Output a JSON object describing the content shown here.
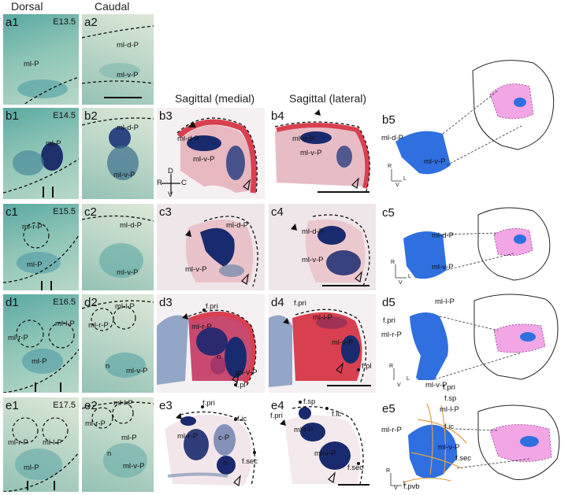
{
  "headers": {
    "dorsal": "Dorsal",
    "caudal": "Caudal",
    "sag_medial": "Sagittal (medial)",
    "sag_lateral": "Sagittal (lateral)"
  },
  "row_a": {
    "a1": {
      "label": "a1",
      "stage": "E13.5",
      "mlP": "ml-P"
    },
    "a2": {
      "label": "a2",
      "mldP": "ml-d-P",
      "mlvP": "ml-v-P"
    }
  },
  "row_b": {
    "b1": {
      "label": "b1",
      "stage": "E14.5",
      "mlP": "ml-P"
    },
    "b2": {
      "label": "b2",
      "mldP": "ml-d-P",
      "mlvP": "ml-v-P"
    },
    "b3": {
      "label": "b3",
      "mldP": "ml-d-P",
      "mlvP": "ml-v-P",
      "D": "D",
      "R": "R",
      "C": "C",
      "V": "V"
    },
    "b4": {
      "label": "b4",
      "mldP": "ml-d-P",
      "mlvP": "ml-v-P"
    },
    "b5": {
      "label": "b5",
      "mldP": "ml-d-P",
      "mlvP": "ml-v-P",
      "R": "R",
      "L": "L",
      "V": "V"
    }
  },
  "row_c": {
    "c1": {
      "label": "c1",
      "stage": "E15.5",
      "mlrP": "ml-r-P",
      "mlP": "ml-P"
    },
    "c2": {
      "label": "c2",
      "mldP": "ml-d-P",
      "mlvP": "ml-v-P"
    },
    "c3": {
      "label": "c3",
      "mldP": "ml-d-P",
      "mlvP": "ml-v-P"
    },
    "c4": {
      "label": "c4",
      "mldP": "ml-d-P",
      "mlvP": "ml-v-P"
    },
    "c5": {
      "label": "c5",
      "mldP": "ml-d-P",
      "mlvP": "ml-v-P",
      "R": "R",
      "L": "L",
      "V": "V"
    }
  },
  "row_d": {
    "d1": {
      "label": "d1",
      "stage": "E16.5",
      "mllP": "ml-l-P",
      "mlrP": "ml-r-P",
      "mlP": "ml-P"
    },
    "d2": {
      "label": "d2",
      "mllP": "ml-l-P",
      "mlrP": "ml-r-P",
      "n": "n",
      "mlvP": "ml-v-P"
    },
    "d3": {
      "label": "d3",
      "fpri": "f.pri",
      "mlrP": "ml-r-P",
      "n": "n",
      "mlvP": "ml-v-P",
      "fpl": "f.pl"
    },
    "d4": {
      "label": "d4",
      "fpri": "f.pri",
      "mllP": "ml-l-P",
      "mlvP": "ml-v-P",
      "fpl": "f.pl"
    },
    "d5": {
      "label": "d5",
      "mllP": "ml-l-P",
      "fpri": "f.pri",
      "mlrP": "ml-r-P",
      "mlvP": "ml-v-P",
      "R": "R",
      "L": "L",
      "V": "V"
    }
  },
  "row_e": {
    "e1": {
      "label": "e1",
      "stage": "E17.5",
      "mlrP": "ml-r-P",
      "mllP": "ml-l-P",
      "mlP": "ml-P"
    },
    "e2": {
      "label": "e2",
      "mllP": "ml-l-P",
      "mlrP": "ml-r-P",
      "mlP": "ml-P",
      "n": "n",
      "mlvP": "ml-v-P"
    },
    "e3": {
      "label": "e3",
      "fpri": "f.pri",
      "fic": "f.ic",
      "mlrP": "ml-r-P",
      "cP": "c-P",
      "n": "n",
      "fsec": "f.sec"
    },
    "e4": {
      "label": "e4",
      "fsp": "f.sp",
      "fpri": "f.pri",
      "fic": "f.ic",
      "mllP": "ml-l-P",
      "mlvP": "ml-v-P",
      "fsec": "f.sec"
    },
    "e5": {
      "label": "e5",
      "fpri": "f.pri",
      "fsp": "f.sp",
      "mllP": "ml-l-P",
      "fic": "f.ic",
      "mlrP": "ml-r-P",
      "mlvP": "ml-v-P",
      "fsec": "f.sec",
      "fpvb": "f.pvb",
      "R": "R",
      "L": "L",
      "V": "V"
    }
  },
  "colors": {
    "xgal_blue": "#1a2a6e",
    "red_stain": "#d8404f",
    "model_blue": "#2f6fe0",
    "model_pink": "#f2a6e6",
    "fissure_orange": "#e0a14a"
  }
}
